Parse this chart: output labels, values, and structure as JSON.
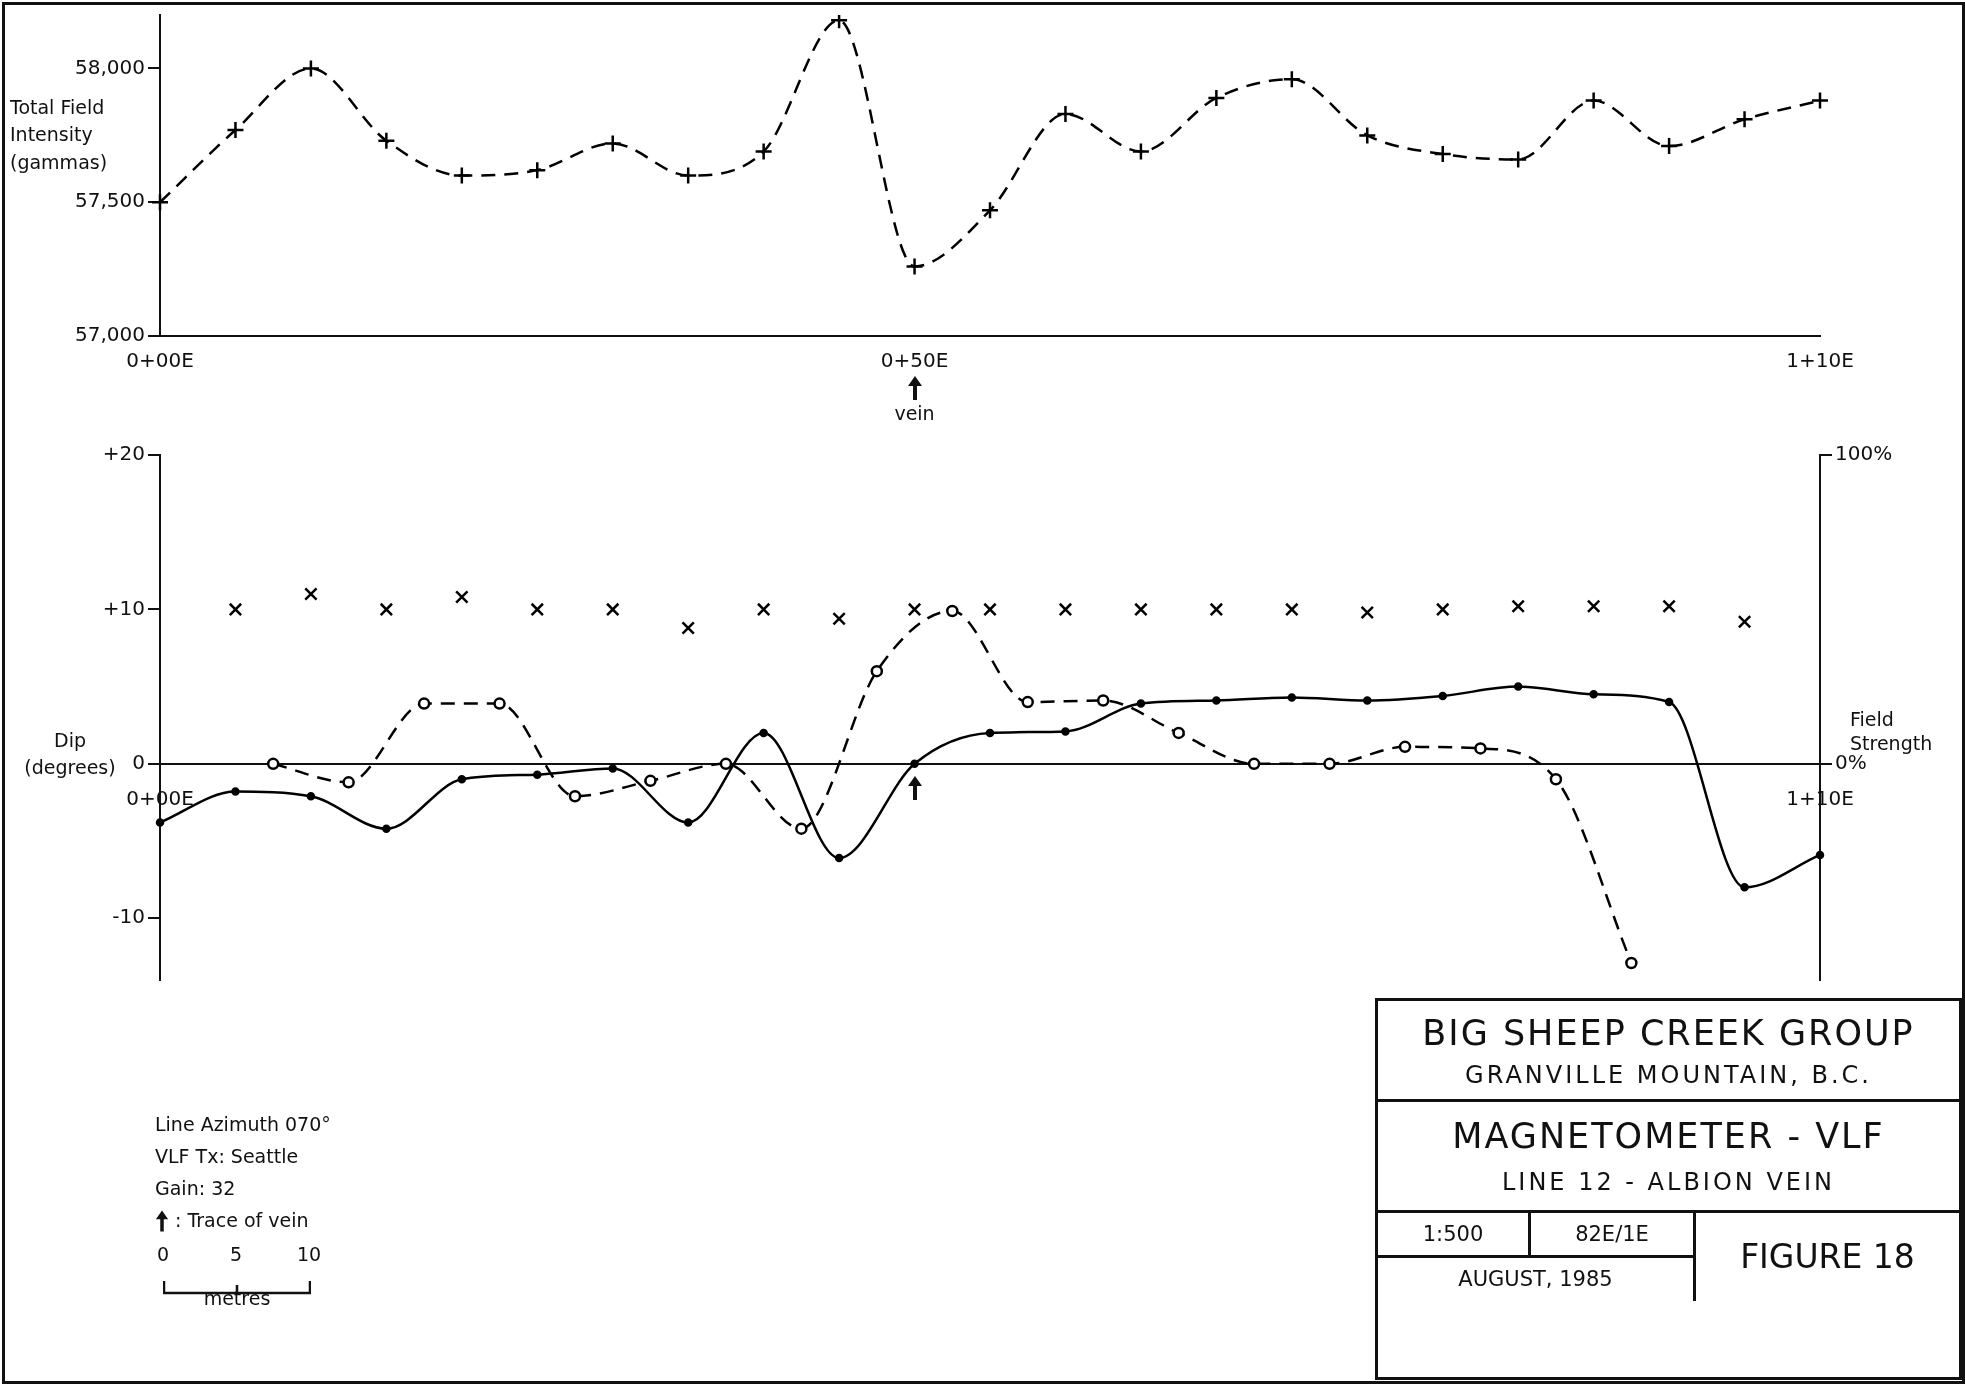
{
  "chart_data": [
    {
      "type": "line",
      "ylabel": "Total Field Intensity (gammas)",
      "categories": [
        "0+00E",
        null,
        null,
        null,
        null,
        null,
        null,
        null,
        null,
        null,
        null,
        null,
        null,
        null,
        null,
        null,
        null,
        null,
        null,
        null,
        "0+50E",
        null,
        null,
        null,
        null,
        null,
        null,
        null,
        null,
        null,
        null,
        null,
        null,
        null,
        null,
        null,
        null,
        null,
        null,
        null,
        null,
        null,
        null,
        null,
        "1+10E"
      ],
      "ylim": [
        57000,
        58200
      ],
      "yticks": [
        {
          "value": 57000,
          "label": "57,000"
        },
        {
          "value": 57500,
          "label": "57,500"
        },
        {
          "value": 58000,
          "label": "58,000"
        }
      ],
      "grid": false,
      "legend": false,
      "marker": "cross",
      "line_style": "dashed",
      "annotations": [
        "vein"
      ],
      "series": [
        {
          "color": "#000000",
          "values": [
            57500,
            null,
            57770,
            null,
            58000,
            null,
            57730,
            null,
            57600,
            null,
            57620,
            null,
            57720,
            null,
            57600,
            null,
            57690,
            null,
            58180,
            null,
            57260,
            null,
            57470,
            null,
            57830,
            null,
            57690,
            null,
            57890,
            null,
            57960,
            null,
            57750,
            null,
            57680,
            null,
            57660,
            null,
            57880,
            null,
            57710,
            null,
            57810,
            null,
            57880
          ]
        }
      ]
    },
    {
      "type": "line",
      "ylabel": "Dip (degrees)",
      "y2label": "Field Strength",
      "categories": [
        "0+00E",
        null,
        null,
        null,
        null,
        null,
        null,
        null,
        null,
        null,
        null,
        null,
        null,
        null,
        null,
        null,
        null,
        null,
        null,
        null,
        null,
        null,
        null,
        null,
        null,
        null,
        null,
        null,
        null,
        null,
        null,
        null,
        null,
        null,
        null,
        null,
        null,
        null,
        null,
        null,
        null,
        null,
        null,
        null,
        "1+10E"
      ],
      "ylim": [
        -14,
        20
      ],
      "yticks": [
        {
          "value": -10,
          "label": "-10"
        },
        0,
        {
          "value": 10,
          "label": "+10"
        },
        {
          "value": 20,
          "label": "+20"
        }
      ],
      "y2lim": [
        -70,
        100
      ],
      "y2ticks": [
        {
          "value": 0,
          "label": "0%"
        },
        {
          "value": 100,
          "label": "100%"
        }
      ],
      "grid": false,
      "legend": false,
      "annotations": [
        "Line Azimuth 070°",
        "VLF Tx: Seattle",
        "Gain: 32",
        ": Trace of vein",
        "0",
        "5",
        "10",
        "metres"
      ],
      "series": [
        {
          "type": "line",
          "color": "#000000",
          "line_style": "solid",
          "marker": "circle",
          "values": [
            -3.8,
            null,
            -1.8,
            null,
            -2.1,
            null,
            -4.2,
            null,
            -1.0,
            null,
            -0.7,
            null,
            -0.3,
            null,
            -3.8,
            null,
            2.0,
            null,
            -6.1,
            null,
            0,
            null,
            2.0,
            null,
            2.1,
            null,
            3.9,
            null,
            4.1,
            null,
            4.3,
            null,
            4.1,
            null,
            4.4,
            null,
            5.0,
            null,
            4.5,
            null,
            4.0,
            null,
            -8.0,
            null,
            -5.9
          ]
        },
        {
          "type": "line",
          "color": "#000000",
          "line_style": "dashed",
          "marker": "circle",
          "values": [
            null,
            null,
            null,
            0,
            null,
            -1.2,
            null,
            3.9,
            null,
            3.9,
            null,
            -2.1,
            null,
            -1.1,
            null,
            0,
            null,
            -4.2,
            null,
            6.0,
            null,
            9.9,
            null,
            4.0,
            null,
            4.1,
            null,
            2.0,
            null,
            0,
            null,
            0,
            null,
            1.1,
            null,
            1.0,
            null,
            -1.0,
            null,
            -12.9,
            null,
            null,
            null,
            null,
            null
          ]
        },
        {
          "type": "scatter",
          "axis": "y2",
          "color": "#000000",
          "marker": "cross",
          "values": [
            null,
            null,
            50,
            null,
            55,
            null,
            50,
            null,
            54,
            null,
            50,
            null,
            50,
            null,
            44,
            null,
            50,
            null,
            47,
            null,
            50,
            null,
            50,
            null,
            50,
            null,
            50,
            null,
            50,
            null,
            50,
            null,
            49,
            null,
            50,
            null,
            51,
            null,
            51,
            null,
            51,
            null,
            46,
            null,
            null
          ]
        }
      ]
    },
    {
      "type": "other",
      "title": "BIG SHEEP CREEK GROUP",
      "subtitle": "GRANVILLE MOUNTAIN, B.C.",
      "annotations": [
        "MAGNETOMETER - VLF",
        "LINE 12 - ALBION VEIN",
        "1:500",
        "82E/1E",
        "AUGUST, 1985",
        "FIGURE 18"
      ]
    }
  ]
}
